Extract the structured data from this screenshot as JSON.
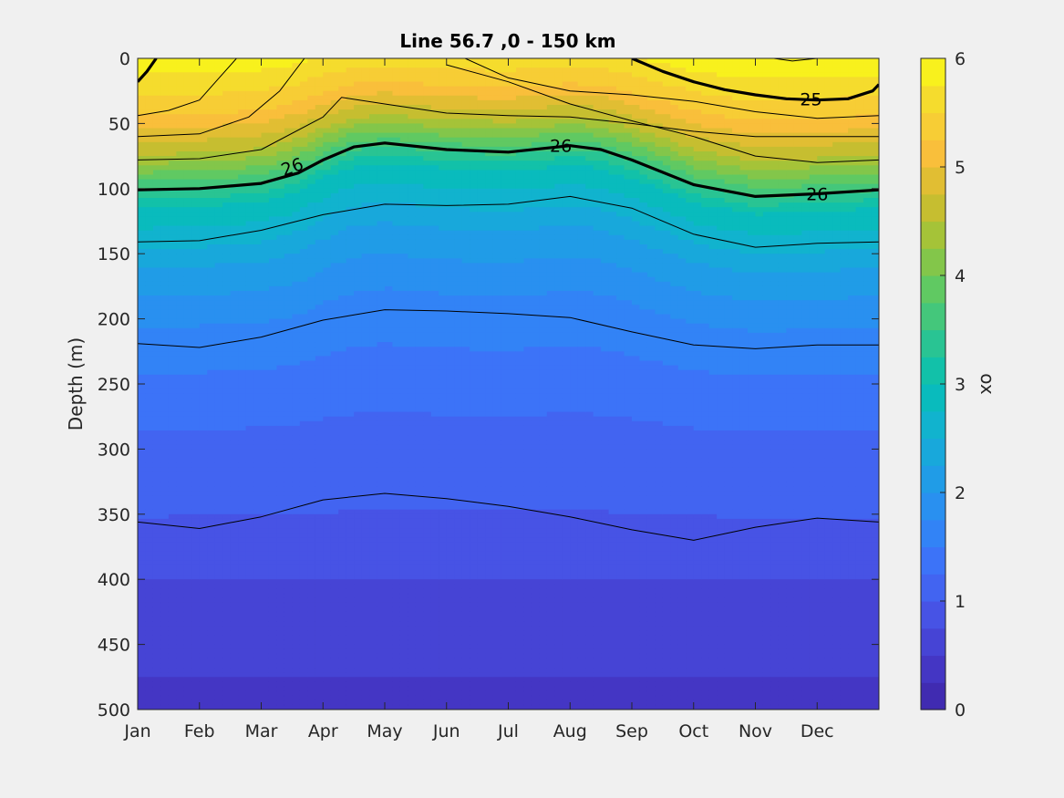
{
  "chart_data": {
    "type": "heatmap",
    "subtype": "filled-contour",
    "title": "Line 56.7 ,0 - 150 km",
    "xlabel": "",
    "ylabel": "Depth (m)",
    "x_ticks": [
      "Jan",
      "Feb",
      "Mar",
      "Apr",
      "May",
      "Jun",
      "Jul",
      "Aug",
      "Sep",
      "Oct",
      "Nov",
      "Dec"
    ],
    "y_ticks": [
      "0",
      "50",
      "100",
      "150",
      "200",
      "250",
      "300",
      "350",
      "400",
      "450",
      "500"
    ],
    "x_range": [
      1,
      13
    ],
    "ylim": [
      0,
      500
    ],
    "y_reversed": true,
    "grid": false,
    "colorbar": {
      "label": "ox",
      "range": [
        0,
        6
      ],
      "ticks": [
        "0",
        "1",
        "2",
        "3",
        "4",
        "5",
        "6"
      ],
      "levels": 24,
      "colormap": [
        "#3e26a8",
        "#4538c8",
        "#4752e4",
        "#3f6ef8",
        "#2f88f6",
        "#1f9de6",
        "#12b1d2",
        "#06bfb4",
        "#2ec58e",
        "#5ec964",
        "#99c43a",
        "#d2bd2e",
        "#fbbf3c",
        "#f4d830",
        "#f9fb15"
      ]
    },
    "ox_profile": {
      "depths": [
        0,
        30,
        60,
        100,
        150,
        200,
        250,
        300,
        350,
        400,
        450,
        500
      ],
      "values": [
        5.8,
        5.3,
        4.5,
        3.0,
        2.2,
        1.7,
        1.4,
        1.15,
        1.0,
        0.75,
        0.55,
        0.45
      ]
    },
    "contour_lines": [
      {
        "name": "sigma-25",
        "label": "25",
        "bold": true,
        "x": [
          9.0,
          9.5,
          10.0,
          10.5,
          11.0,
          11.5,
          12.0,
          12.5,
          12.9,
          13.0
        ],
        "depth": [
          0,
          10,
          18,
          24,
          28,
          31,
          32,
          31,
          25,
          20
        ]
      },
      {
        "name": "sigma-25-left",
        "label": "",
        "bold": true,
        "x": [
          1.0,
          1.15,
          1.3
        ],
        "depth": [
          18,
          10,
          0
        ]
      },
      {
        "name": "sigma-26",
        "label": "26",
        "bold": true,
        "x": [
          1.0,
          2.0,
          3.0,
          3.6,
          4.0,
          4.5,
          5.0,
          6.0,
          7.0,
          8.0,
          8.5,
          9.0,
          10.0,
          11.0,
          12.0,
          13.0
        ],
        "depth": [
          101,
          100,
          96,
          88,
          78,
          68,
          65,
          70,
          72,
          67,
          70,
          78,
          97,
          106,
          104,
          101
        ]
      },
      {
        "name": "contour-thin-1",
        "label": "",
        "bold": false,
        "x": [
          1.0,
          1.5,
          2.0,
          2.3,
          2.6
        ],
        "depth": [
          44,
          40,
          32,
          16,
          0
        ]
      },
      {
        "name": "contour-thin-2",
        "label": "",
        "bold": false,
        "x": [
          1.0,
          2.0,
          2.8,
          3.3,
          3.7
        ],
        "depth": [
          60,
          58,
          45,
          25,
          0
        ]
      },
      {
        "name": "contour-thin-3",
        "label": "",
        "bold": false,
        "x": [
          1.0,
          2.0,
          3.0,
          4.0,
          4.3,
          5.0,
          6.0,
          7.0,
          8.0,
          9.0,
          10.0,
          11.0,
          12.0,
          13.0
        ],
        "depth": [
          78,
          77,
          70,
          45,
          30,
          35,
          42,
          44,
          45,
          50,
          56,
          60,
          60,
          60
        ]
      },
      {
        "name": "contour-thin-4",
        "label": "",
        "bold": false,
        "x": [
          6.3,
          7.0,
          8.0,
          9.0,
          10.0,
          11.0,
          12.0,
          13.0
        ],
        "depth": [
          0,
          15,
          25,
          28,
          33,
          41,
          46,
          44
        ]
      },
      {
        "name": "contour-thin-5",
        "label": "",
        "bold": false,
        "x": [
          6.0,
          7.0,
          8.0,
          9.0,
          10.0,
          11.0,
          12.0,
          13.0
        ],
        "depth": [
          5,
          18,
          35,
          48,
          60,
          75,
          80,
          78
        ]
      },
      {
        "name": "contour-thin-6",
        "label": "",
        "bold": false,
        "x": [
          11.3,
          11.6,
          12.0
        ],
        "depth": [
          0,
          2,
          0
        ]
      },
      {
        "name": "contour-thin-7",
        "label": "",
        "bold": false,
        "x": [
          1.0,
          2.0,
          3.0,
          4.0,
          5.0,
          6.0,
          7.0,
          8.0,
          9.0,
          10.0,
          11.0,
          12.0,
          13.0
        ],
        "depth": [
          141,
          140,
          132,
          120,
          112,
          113,
          112,
          106,
          115,
          135,
          145,
          142,
          141
        ]
      },
      {
        "name": "contour-thin-8",
        "label": "",
        "bold": false,
        "x": [
          1.0,
          2.0,
          3.0,
          4.0,
          5.0,
          6.0,
          7.0,
          8.0,
          9.0,
          10.0,
          11.0,
          12.0,
          13.0
        ],
        "depth": [
          219,
          222,
          214,
          201,
          193,
          194,
          196,
          199,
          210,
          220,
          223,
          220,
          220
        ]
      },
      {
        "name": "contour-thin-9",
        "label": "",
        "bold": false,
        "x": [
          1.0,
          2.0,
          3.0,
          4.0,
          5.0,
          6.0,
          7.0,
          8.0,
          9.0,
          10.0,
          11.0,
          12.0,
          13.0
        ],
        "depth": [
          356,
          361,
          352,
          339,
          334,
          338,
          344,
          352,
          362,
          370,
          360,
          353,
          356
        ]
      }
    ],
    "contour_labels": [
      {
        "text": "26",
        "x": 3.5,
        "depth": 83,
        "angle": -20
      },
      {
        "text": "26",
        "x": 7.85,
        "depth": 67,
        "angle": 0
      },
      {
        "text": "26",
        "x": 12.0,
        "depth": 104,
        "angle": 0
      },
      {
        "text": "25",
        "x": 11.9,
        "depth": 31,
        "angle": 0
      }
    ]
  }
}
